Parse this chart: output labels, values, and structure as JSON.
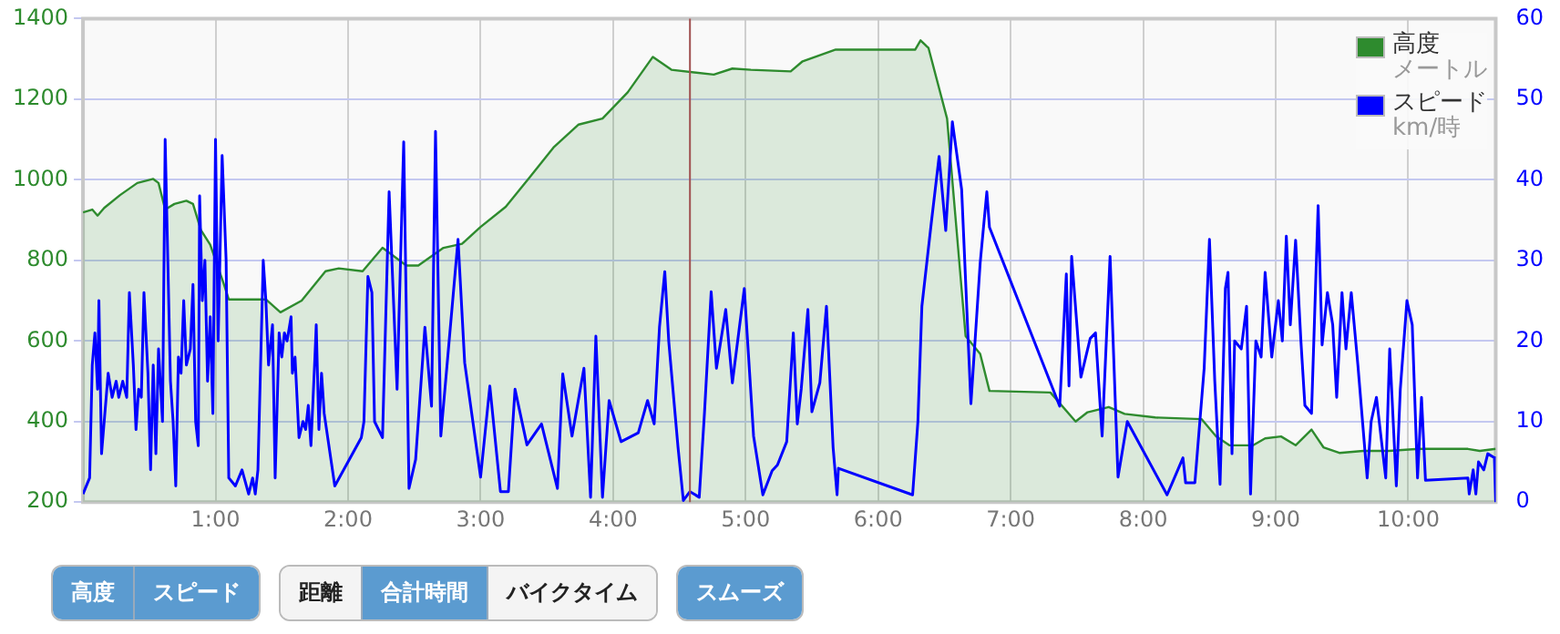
{
  "chart_data": {
    "type": "line",
    "xlim": [
      0,
      10.66
    ],
    "xticks": [
      {
        "value": 1,
        "label": "1:00"
      },
      {
        "value": 2,
        "label": "2:00"
      },
      {
        "value": 3,
        "label": "3:00"
      },
      {
        "value": 4,
        "label": "4:00"
      },
      {
        "value": 5,
        "label": "5:00"
      },
      {
        "value": 6,
        "label": "6:00"
      },
      {
        "value": 7,
        "label": "7:00"
      },
      {
        "value": 8,
        "label": "8:00"
      },
      {
        "value": 9,
        "label": "9:00"
      },
      {
        "value": 10,
        "label": "10:00"
      }
    ],
    "ylim": [
      200,
      1400
    ],
    "yticks": [
      200,
      400,
      600,
      800,
      1000,
      1200,
      1400
    ],
    "y2lim": [
      0,
      60
    ],
    "y2ticks": [
      0,
      10,
      20,
      30,
      40,
      50,
      60
    ],
    "grid": true,
    "legend": "top right",
    "marker": "none",
    "line_style": "solid",
    "ref_lines": [
      {
        "axis": "x",
        "value": 4.58,
        "color": "#a05050"
      }
    ],
    "annotations": [
      "高度",
      "スピード",
      "距離",
      "合計時間",
      "バイクタイム",
      "スムーズ",
      "メートル",
      "km/時"
    ],
    "series": [
      {
        "name": "高度",
        "type": "area",
        "color": "#2e8b2e",
        "x": [
          0,
          0.07,
          0.11,
          0.16,
          0.28,
          0.41,
          0.53,
          0.57,
          0.62,
          0.69,
          0.78,
          0.83,
          0.89,
          0.96,
          1.06,
          1.1,
          1.38,
          1.49,
          1.65,
          1.83,
          1.93,
          2.11,
          2.26,
          2.44,
          2.53,
          2.72,
          2.86,
          3.0,
          3.19,
          3.37,
          3.55,
          3.74,
          3.92,
          4.11,
          4.3,
          4.44,
          4.76,
          4.9,
          5.04,
          5.34,
          5.43,
          5.68,
          6.28,
          6.32,
          6.38,
          6.52,
          6.66,
          6.77,
          6.84,
          7.3,
          7.49,
          7.58,
          7.74,
          7.86,
          8.09,
          8.44,
          8.55,
          8.65,
          8.83,
          8.92,
          9.04,
          9.15,
          9.27,
          9.36,
          9.48,
          9.66,
          9.85,
          10.08,
          10.45,
          10.54,
          10.66
        ],
        "values": [
          919,
          926,
          911,
          930,
          962,
          992,
          1002,
          992,
          926,
          940,
          948,
          940,
          875,
          839,
          744,
          703,
          703,
          671,
          700,
          773,
          780,
          773,
          831,
          787,
          787,
          831,
          841,
          883,
          933,
          1006,
          1080,
          1137,
          1152,
          1217,
          1305,
          1273,
          1261,
          1276,
          1273,
          1269,
          1294,
          1323,
          1323,
          1346,
          1327,
          1152,
          612,
          568,
          476,
          472,
          400,
          423,
          436,
          419,
          410,
          406,
          363,
          341,
          341,
          358,
          363,
          341,
          380,
          336,
          322,
          327,
          327,
          332,
          332,
          327,
          332
        ]
      },
      {
        "name": "スピード",
        "type": "line",
        "axis": "y2",
        "color": "#0000ff",
        "x": [
          0,
          0.05,
          0.07,
          0.09,
          0.11,
          0.12,
          0.14,
          0.19,
          0.22,
          0.25,
          0.27,
          0.3,
          0.33,
          0.35,
          0.38,
          0.4,
          0.42,
          0.44,
          0.46,
          0.49,
          0.51,
          0.53,
          0.55,
          0.57,
          0.6,
          0.62,
          0.64,
          0.66,
          0.68,
          0.7,
          0.72,
          0.74,
          0.76,
          0.78,
          0.81,
          0.83,
          0.85,
          0.87,
          0.88,
          0.9,
          0.92,
          0.94,
          0.96,
          0.98,
          1.0,
          1.02,
          1.05,
          1.08,
          1.1,
          1.15,
          1.2,
          1.25,
          1.28,
          1.3,
          1.32,
          1.36,
          1.38,
          1.4,
          1.43,
          1.45,
          1.48,
          1.5,
          1.52,
          1.54,
          1.57,
          1.58,
          1.6,
          1.63,
          1.66,
          1.68,
          1.7,
          1.72,
          1.75,
          1.76,
          1.78,
          1.8,
          1.82,
          1.9,
          2.0,
          2.1,
          2.12,
          2.15,
          2.18,
          2.2,
          2.26,
          2.31,
          2.37,
          2.42,
          2.46,
          2.51,
          2.58,
          2.63,
          2.66,
          2.7,
          2.83,
          2.88,
          3.0,
          3.07,
          3.15,
          3.21,
          3.26,
          3.35,
          3.46,
          3.58,
          3.62,
          3.69,
          3.78,
          3.83,
          3.87,
          3.92,
          3.97,
          4.06,
          4.19,
          4.26,
          4.31,
          4.35,
          4.39,
          4.42,
          4.49,
          4.53,
          4.58,
          4.65,
          4.69,
          4.74,
          4.78,
          4.85,
          4.9,
          4.99,
          5.06,
          5.13,
          5.2,
          5.24,
          5.31,
          5.36,
          5.39,
          5.42,
          5.47,
          5.5,
          5.56,
          5.61,
          5.66,
          5.69,
          5.7,
          6.26,
          6.3,
          6.33,
          6.4,
          6.46,
          6.51,
          6.56,
          6.63,
          6.7,
          6.77,
          6.82,
          6.84,
          7.37,
          7.42,
          7.44,
          7.46,
          7.53,
          7.6,
          7.64,
          7.69,
          7.75,
          7.81,
          7.88,
          8.18,
          8.22,
          8.3,
          8.32,
          8.39,
          8.46,
          8.5,
          8.54,
          8.58,
          8.62,
          8.64,
          8.67,
          8.69,
          8.74,
          8.78,
          8.81,
          8.85,
          8.89,
          8.92,
          8.97,
          9.02,
          9.05,
          9.08,
          9.11,
          9.15,
          9.19,
          9.22,
          9.27,
          9.32,
          9.35,
          9.39,
          9.43,
          9.46,
          9.5,
          9.53,
          9.57,
          9.62,
          9.69,
          9.72,
          9.76,
          9.83,
          9.86,
          9.91,
          9.94,
          9.99,
          10.03,
          10.07,
          10.1,
          10.13,
          10.45,
          10.46,
          10.49,
          10.51,
          10.53,
          10.57,
          10.6,
          10.65,
          10.66
        ],
        "values": [
          1,
          3,
          17,
          21,
          14,
          25,
          6,
          16,
          13,
          15,
          13,
          15,
          13,
          26,
          17,
          9,
          14,
          13,
          26,
          16,
          4,
          17,
          6,
          19,
          10,
          45,
          30,
          15,
          10,
          2,
          18,
          16,
          25,
          17,
          19,
          27,
          10,
          7,
          38,
          25,
          30,
          15,
          23,
          11,
          45,
          20,
          43,
          30,
          3,
          2,
          4,
          1,
          3,
          1,
          4,
          30,
          25,
          17,
          22,
          3,
          21,
          18,
          21,
          20,
          23,
          16,
          18,
          8,
          10,
          9,
          12,
          7,
          18,
          22,
          9,
          16,
          11,
          2,
          5,
          8,
          10,
          28,
          26,
          10,
          8,
          38.5,
          14,
          44.7,
          1.7,
          5.3,
          21.7,
          11.9,
          46,
          8.2,
          32.6,
          17.3,
          3.1,
          14.4,
          1.3,
          1.3,
          14,
          7.1,
          9.7,
          1.7,
          15.9,
          8.2,
          16.6,
          0.6,
          20.6,
          0.6,
          12.6,
          7.5,
          8.6,
          12.6,
          9.7,
          21.7,
          28.6,
          19.9,
          6.8,
          0.2,
          1.3,
          0.6,
          11.2,
          26.1,
          16.6,
          23.9,
          14.8,
          26.5,
          8.2,
          0.9,
          3.9,
          4.6,
          7.5,
          21,
          9.7,
          14.1,
          23.9,
          11.2,
          14.8,
          24.3,
          6.8,
          0.9,
          4.2,
          0.9,
          10,
          24.3,
          34.5,
          42.9,
          33.7,
          47.2,
          38.8,
          12.2,
          29.7,
          38.5,
          34.1,
          11.9,
          28.3,
          14.4,
          30.5,
          15.5,
          20.3,
          21,
          8.2,
          30.5,
          3.1,
          10,
          0.9,
          2.4,
          5.5,
          2.4,
          2.4,
          16.6,
          32.6,
          15,
          2.2,
          26.5,
          28.5,
          6,
          20,
          19,
          24.3,
          1,
          20,
          18,
          28.5,
          18,
          25,
          20,
          33,
          22,
          32.5,
          20,
          12,
          11,
          36.8,
          19.5,
          26,
          22,
          13,
          26,
          19,
          26,
          17,
          3,
          10,
          13,
          3,
          19,
          2,
          14,
          25,
          22,
          3,
          13,
          2.7,
          3,
          1,
          4,
          1,
          5,
          4,
          6,
          5.5,
          0
        ]
      }
    ]
  }
}
